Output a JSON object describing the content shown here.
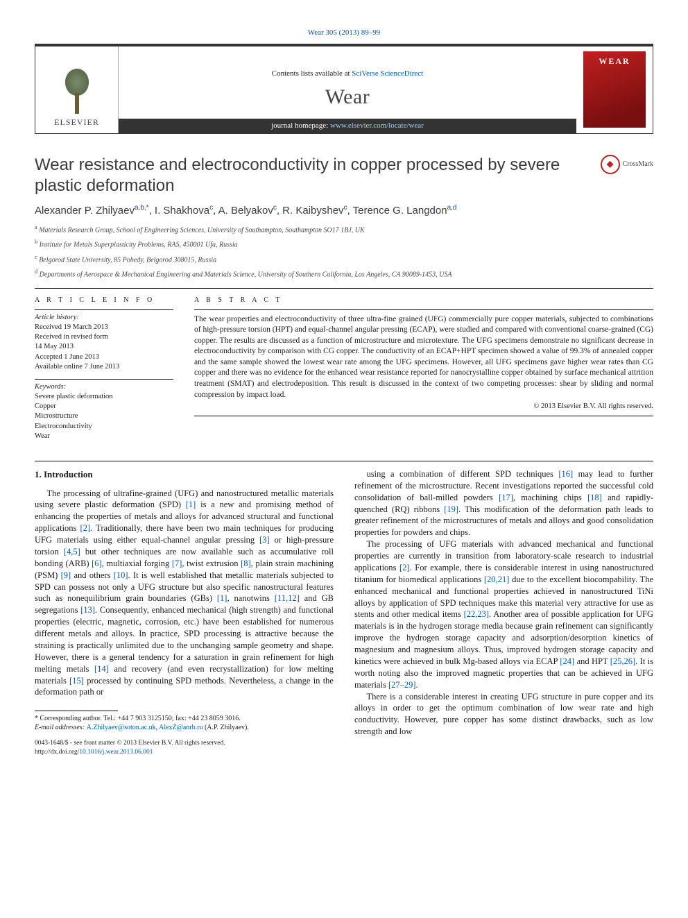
{
  "header": {
    "citation": "Wear 305 (2013) 89–99",
    "contents_prefix": "Contents lists available at ",
    "contents_link": "SciVerse ScienceDirect",
    "journal": "Wear",
    "homepage_prefix": "journal homepage: ",
    "homepage_link": "www.elsevier.com/locate/wear",
    "publisher_logo_text": "ELSEVIER",
    "cover_text": "WEAR"
  },
  "title": "Wear resistance and electroconductivity in copper processed by severe plastic deformation",
  "crossmark_label": "CrossMark",
  "authors_html": "Alexander P. Zhilyaev<sup>a,b,*</sup>, I. Shakhova<sup>c</sup>, A. Belyakov<sup>c</sup>, R. Kaibyshev<sup>c</sup>, Terence G. Langdon<sup>a,d</sup>",
  "affiliations": [
    "a Materials Research Group, School of Engineering Sciences, University of Southampton, Southampton SO17 1BJ, UK",
    "b Institute for Metals Superplasticity Problems, RAS, 450001 Ufa, Russia",
    "c Belgorod State University, 85 Pobedy, Belgorod 308015, Russia",
    "d Departments of Aerospace & Mechanical Engineering and Materials Science, University of Southern California, Los Angeles, CA 90089-1453, USA"
  ],
  "article_info": {
    "label": "A R T I C L E  I N F O",
    "history_label": "Article history:",
    "history": [
      "Received 19 March 2013",
      "Received in revised form",
      "14 May 2013",
      "Accepted 1 June 2013",
      "Available online 7 June 2013"
    ],
    "keywords_label": "Keywords:",
    "keywords": [
      "Severe plastic deformation",
      "Copper",
      "Microstructure",
      "Electroconductivity",
      "Wear"
    ]
  },
  "abstract": {
    "label": "A B S T R A C T",
    "text": "The wear properties and electroconductivity of three ultra-fine grained (UFG) commercially pure copper materials, subjected to combinations of high-pressure torsion (HPT) and equal-channel angular pressing (ECAP), were studied and compared with conventional coarse-grained (CG) copper. The results are discussed as a function of microstructure and microtexture. The UFG specimens demonstrate no significant decrease in electroconductivity by comparison with CG copper. The conductivity of an ECAP+HPT specimen showed a value of 99.3% of annealed copper and the same sample showed the lowest wear rate among the UFG specimens. However, all UFG specimens gave higher wear rates than CG copper and there was no evidence for the enhanced wear resistance reported for nanocrystalline copper obtained by surface mechanical attrition treatment (SMAT) and electrodeposition. This result is discussed in the context of two competing processes: shear by sliding and normal compression by impact load.",
    "copyright": "© 2013 Elsevier B.V. All rights reserved."
  },
  "section1_heading": "1.  Introduction",
  "body_left": "The processing of ultrafine-grained (UFG) and nanostructured metallic materials using severe plastic deformation (SPD) [1] is a new and promising method of enhancing the properties of metals and alloys for advanced structural and functional applications [2]. Traditionally, there have been two main techniques for producing UFG materials using either equal-channel angular pressing [3] or high-pressure torsion [4,5] but other techniques are now available such as accumulative roll bonding (ARB) [6], multiaxial forging [7], twist extrusion [8], plain strain machining (PSM) [9] and others [10]. It is well established that metallic materials subjected to SPD can possess not only a UFG structure but also specific nanostructural features such as nonequilibrium grain boundaries (GBs) [1], nanotwins [11,12] and GB segregations [13]. Consequently, enhanced mechanical (high strength) and functional properties (electric, magnetic, corrosion, etc.) have been established for numerous different metals and alloys. In practice, SPD processing is attractive because the straining is practically unlimited due to the unchanging sample geometry and shape. However, there is a general tendency for a saturation in grain refinement for high melting metals [14] and recovery (and even recrystallization) for low melting materials [15] processed by continuing SPD methods. Nevertheless, a change in the deformation path or",
  "body_right_p1": "using a combination of different SPD techniques [16] may lead to further refinement of the microstructure. Recent investigations reported the successful cold consolidation of ball-milled powders [17], machining chips [18] and rapidly-quenched (RQ) ribbons [19]. This modification of the deformation path leads to greater refinement of the microstructures of metals and alloys and good consolidation properties for powders and chips.",
  "body_right_p2": "The processing of UFG materials with advanced mechanical and functional properties are currently in transition from laboratory-scale research to industrial applications [2]. For example, there is considerable interest in using nanostructured titanium for biomedical applications [20,21] due to the excellent biocompability. The enhanced mechanical and functional properties achieved in nanostructured TiNi alloys by application of SPD techniques make this material very attractive for use as stents and other medical items [22,23]. Another area of possible application for UFG materials is in the hydrogen storage media because grain refinement can significantly improve the hydrogen storage capacity and adsorption/desorption kinetics of magnesium and magnesium alloys. Thus, improved hydrogen storage capacity and kinetics were achieved in bulk Mg-based alloys via ECAP [24] and HPT [25,26]. It is worth noting also the improved magnetic properties that can be achieved in UFG materials [27–29].",
  "body_right_p3": "There is a considerable interest in creating UFG structure in pure copper and its alloys in order to get the optimum combination of low wear rate and high conductivity. However, pure copper has some distinct drawbacks, such as low strength and low",
  "footnote": {
    "corr": "* Corresponding author. Tel.: +44 7 903 3125150; fax: +44 23 8059 3016.",
    "email_label": "E-mail addresses: ",
    "email1": "A.Zhilyaev@soton.ac.uk",
    "email_sep": ", ",
    "email2": "AlexZ@anrb.ru",
    "email_suffix": " (A.P. Zhilyaev)."
  },
  "footer": {
    "line1": "0043-1648/$ - see front matter © 2013 Elsevier B.V. All rights reserved.",
    "doi_label": "http://dx.doi.org/",
    "doi": "10.1016/j.wear.2013.06.001"
  },
  "colors": {
    "link": "#0056b3",
    "cover_grad_a": "#c02020",
    "cover_grad_b": "#7a0f0f",
    "banner_bar": "#333333"
  }
}
